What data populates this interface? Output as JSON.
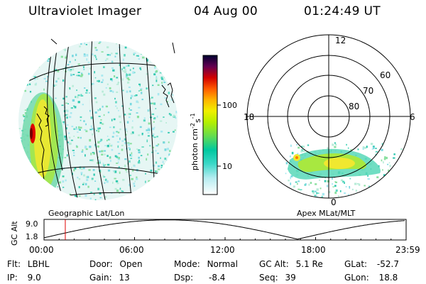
{
  "header": {
    "instrument": "Ultraviolet Imager",
    "date": "04 Aug 00",
    "time": "01:24:49 UT"
  },
  "colorbar": {
    "unit_label": "photon cm-2s-1",
    "ticks": [
      "100",
      "10"
    ],
    "colors": [
      "#ffffff",
      "#5ce0c8",
      "#00c8b4",
      "#78e04a",
      "#c8f000",
      "#f0f000",
      "#ffb400",
      "#ff5000",
      "#c80000",
      "#500050",
      "#000040"
    ]
  },
  "geo_panel": {
    "caption": "Geographic Lat/Lon"
  },
  "polar_panel": {
    "caption": "Apex MLat/MLT",
    "mlt_labels": {
      "top": "12",
      "left": "18",
      "right": "6",
      "bottom": "0"
    },
    "lat_labels": [
      "60",
      "70",
      "80"
    ]
  },
  "gc_alt_plot": {
    "ylabel": "GC Alt",
    "yticks": [
      "9.0",
      "1.8"
    ],
    "xticks": [
      "00:00",
      "06:00",
      "12:00",
      "18:00",
      "23:59"
    ],
    "current_marker_hours": 1.41
  },
  "info": {
    "flt_label": "Flt:",
    "flt_value": "LBHL",
    "ip_label": "IP:",
    "ip_value": "9.0",
    "door_label": "Door:",
    "door_value": "Open",
    "gain_label": "Gain:",
    "gain_value": "13",
    "mode_label": "Mode:",
    "mode_value": "Normal",
    "dsp_label": "Dsp:",
    "dsp_value": "-8.4",
    "gcalt_label": "GC Alt:",
    "gcalt_value": "5.1 Re",
    "seq_label": "Seq:",
    "seq_value": "39",
    "glat_label": "GLat:",
    "glat_value": "-52.7",
    "glon_label": "GLon:",
    "glon_value": "18.8"
  }
}
